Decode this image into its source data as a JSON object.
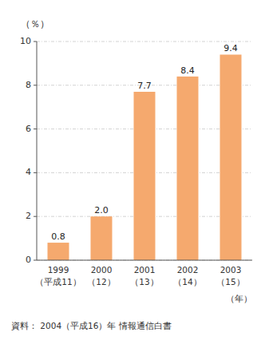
{
  "chart_data": {
    "type": "bar",
    "categories": [
      "1999\n（平成11）",
      "2000\n（12）",
      "2001\n（13）",
      "2002\n（14）",
      "2003\n（15）"
    ],
    "values": [
      0.8,
      2.0,
      7.7,
      8.4,
      9.4
    ],
    "value_labels": [
      "0.8",
      "2.0",
      "7.7",
      "8.4",
      "9.4"
    ],
    "color": "#F5A96E",
    "ylim": [
      0,
      10
    ],
    "yticks": [
      0,
      2,
      4,
      6,
      8,
      10
    ],
    "ylabel": "（％）",
    "xlabel": "（年）",
    "source": "資料： 2004（平成16）年 情報通信白書",
    "grid": true,
    "data_labels": true
  }
}
